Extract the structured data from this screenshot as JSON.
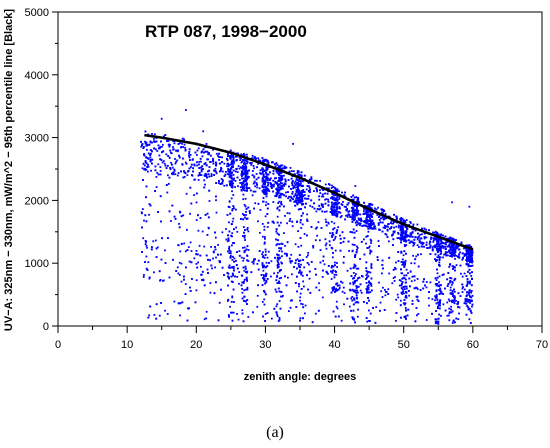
{
  "chart_data": {
    "type": "scatter",
    "title": "RTP 087, 1998−2000",
    "xlabel": "zenith angle: degrees",
    "ylabel": "UV−A: 325nm − 330nm, mW/m^2 − 95th percentile line [Black]",
    "xlim": [
      0,
      70
    ],
    "ylim": [
      0,
      5000
    ],
    "xticks": [
      0,
      10,
      20,
      30,
      40,
      50,
      60,
      70
    ],
    "yticks": [
      0,
      1000,
      2000,
      3000,
      4000,
      5000
    ],
    "grid": false,
    "series": [
      {
        "name": "",
        "style": "scatter",
        "color": "#0000ff",
        "x_range": [
          12,
          60
        ],
        "sample_upper_envelope": [
          [
            12,
            3000
          ],
          [
            20,
            2830
          ],
          [
            25,
            2700
          ],
          [
            30,
            2560
          ],
          [
            35,
            2370
          ],
          [
            40,
            2140
          ],
          [
            45,
            1880
          ],
          [
            50,
            1640
          ],
          [
            55,
            1430
          ],
          [
            60,
            1220
          ]
        ],
        "sample_lower_envelope": [
          [
            12,
            0
          ],
          [
            60,
            0
          ]
        ],
        "notable_points": [
          [
            18.5,
            3440
          ],
          [
            15,
            3300
          ],
          [
            21,
            3100
          ],
          [
            34,
            2900
          ],
          [
            43,
            2230
          ],
          [
            57,
            1970
          ],
          [
            59.5,
            1900
          ]
        ]
      },
      {
        "name": "95th percentile line",
        "style": "line",
        "color": "#000000",
        "x": [
          12.5,
          15,
          20,
          25,
          30,
          35,
          40,
          45,
          50,
          55,
          60
        ],
        "y": [
          3040,
          3000,
          2900,
          2760,
          2570,
          2360,
          2120,
          1860,
          1620,
          1420,
          1220
        ]
      }
    ]
  },
  "caption": "(a)"
}
